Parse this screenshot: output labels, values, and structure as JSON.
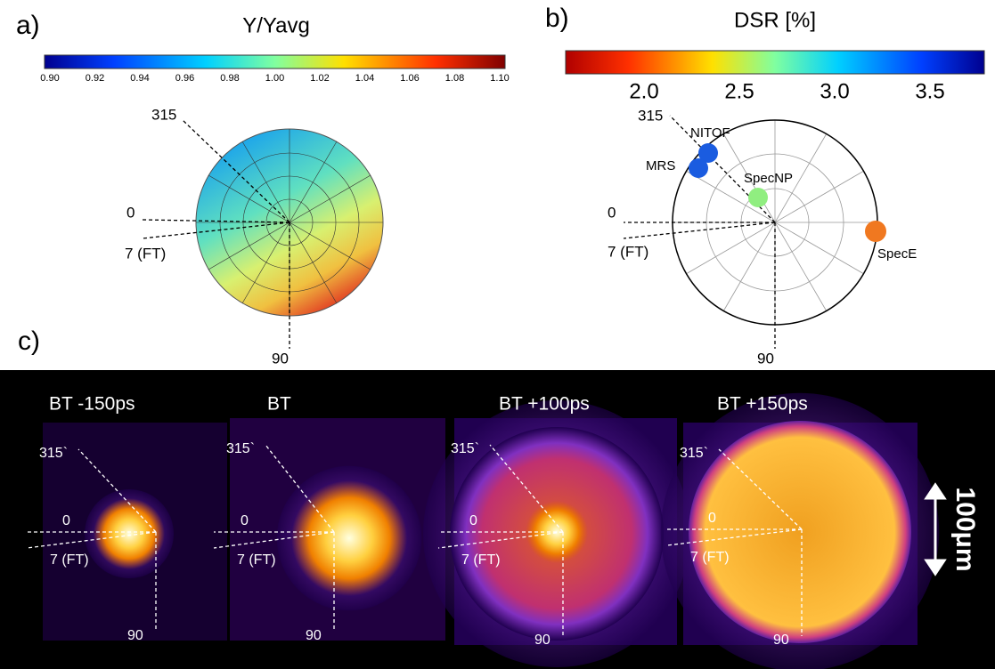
{
  "panel_a": {
    "label": "a)",
    "title": "Y/Yavg",
    "colorbar_ticks": [
      "0.90",
      "0.92",
      "0.94",
      "0.96",
      "0.98",
      "1.00",
      "1.02",
      "1.04",
      "1.06",
      "1.08",
      "1.10"
    ],
    "angles": [
      "315",
      "0",
      "7 (FT)",
      "90"
    ]
  },
  "panel_b": {
    "label": "b)",
    "title": "DSR [%]",
    "colorbar_ticks": [
      "2.0",
      "2.5",
      "3.0",
      "3.5"
    ],
    "angles": [
      "315",
      "0",
      "7 (FT)",
      "90"
    ],
    "detectors": [
      "NITOF",
      "MRS",
      "SpecNP",
      "SpecE"
    ]
  },
  "panel_c": {
    "label": "c)",
    "frames": [
      {
        "title": "BT -150ps",
        "angles": [
          "315`",
          "0",
          "7 (FT)",
          "90"
        ]
      },
      {
        "title": "BT",
        "angles": [
          "315`",
          "0",
          "7 (FT)",
          "90"
        ]
      },
      {
        "title": "BT +100ps",
        "angles": [
          "315`",
          "0",
          "7 (FT)",
          "90"
        ]
      },
      {
        "title": "BT +150ps",
        "angles": [
          "315`",
          "0",
          "7 (FT)",
          "90"
        ]
      }
    ],
    "scale": "100μm"
  }
}
